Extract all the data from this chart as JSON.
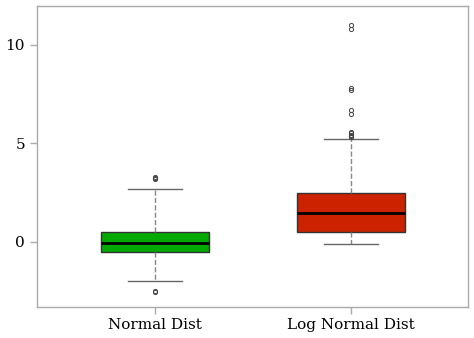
{
  "box1": {
    "label": "Normal Dist",
    "color": "#00AA00",
    "median": -0.05,
    "q1": -0.5,
    "q3": 0.5,
    "whislo": -2.0,
    "whishi": 2.7,
    "fliers_y": [
      -2.5,
      -2.55,
      3.2,
      3.25,
      3.3
    ]
  },
  "box2": {
    "label": "Log Normal Dist",
    "color": "#CC2200",
    "median": 1.45,
    "q1": 0.5,
    "q3": 2.5,
    "whislo": -0.1,
    "whishi": 5.2,
    "fliers_y": [
      5.3,
      5.35,
      5.4,
      5.5,
      5.55,
      6.5,
      6.7,
      7.7,
      7.8,
      10.8,
      11.0
    ]
  },
  "ylim": [
    -3.3,
    12.0
  ],
  "yticks": [
    0,
    5,
    10
  ],
  "bg_color": "#FFFFFF",
  "border_color": "#AAAAAA",
  "box_width": 0.55,
  "positions": [
    1,
    2
  ],
  "xlim": [
    0.4,
    2.6
  ]
}
